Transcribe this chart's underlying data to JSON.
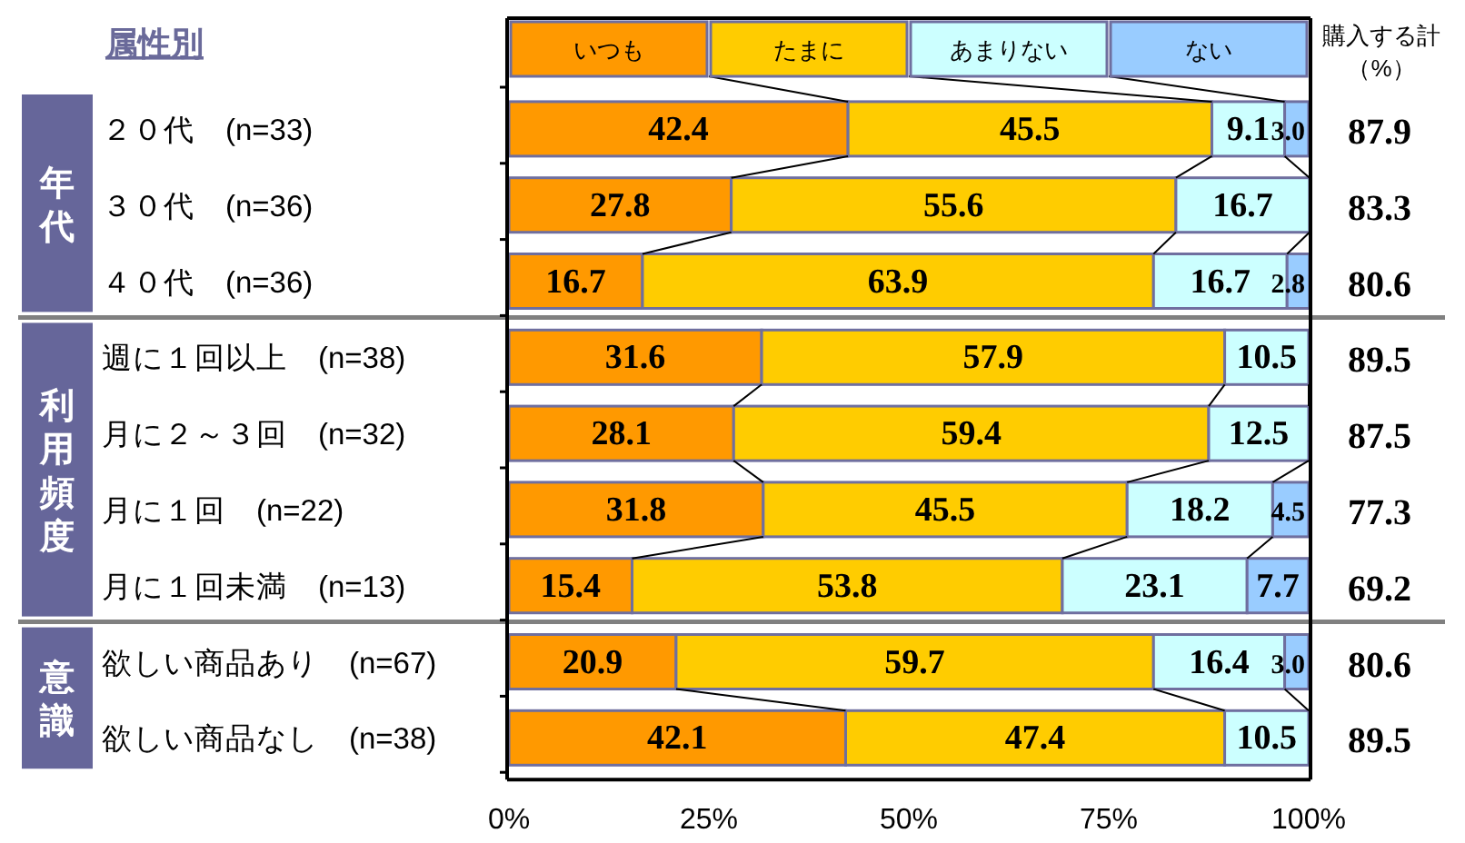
{
  "chart_data": {
    "type": "bar",
    "orientation": "horizontal",
    "stacked": true,
    "ylabel": "属性別",
    "categories": [
      "２０代　(n=33)",
      "３０代　(n=36)",
      "４０代　(n=36)",
      "週に１回以上　(n=38)",
      "月に２～３回　(n=32)",
      "月に１回　(n=22)",
      "月に１回未満　(n=13)",
      "欲しい商品あり　(n=67)",
      "欲しい商品なし　(n=38)"
    ],
    "series": [
      {
        "name": "いつも",
        "color": "#ff9900",
        "values": [
          42.4,
          27.8,
          16.7,
          31.6,
          28.1,
          31.8,
          15.4,
          20.9,
          42.1
        ],
        "value_labels": [
          "42.4",
          "27.8",
          "16.7",
          "31.6",
          "28.1",
          "31.8",
          "15.4",
          "20.9",
          "42.1"
        ]
      },
      {
        "name": "たまに",
        "color": "#ffcc00",
        "values": [
          45.5,
          55.6,
          63.9,
          57.9,
          59.4,
          45.5,
          53.8,
          59.7,
          47.4
        ],
        "value_labels": [
          "45.5",
          "55.6",
          "63.9",
          "57.9",
          "59.4",
          "45.5",
          "53.8",
          "59.7",
          "47.4"
        ]
      },
      {
        "name": "あまりない",
        "color": "#ccffff",
        "values": [
          9.1,
          16.7,
          16.7,
          10.5,
          12.5,
          18.2,
          23.1,
          16.4,
          10.5
        ],
        "value_labels": [
          "9.1",
          "16.7",
          "16.7",
          "10.5",
          "12.5",
          "18.2",
          "23.1",
          "16.4",
          "10.5"
        ]
      },
      {
        "name": "ない",
        "color": "#99ccff",
        "values": [
          3.0,
          0,
          2.8,
          0,
          0,
          4.5,
          7.7,
          3.0,
          0
        ],
        "value_labels": [
          "3.0",
          null,
          "2.8",
          null,
          null,
          "4.5",
          "7.7",
          "3.0",
          null
        ]
      }
    ],
    "xlim": [
      0,
      100
    ],
    "xticks": [
      {
        "value": 0,
        "label": "0%"
      },
      {
        "value": 25,
        "label": "25%"
      },
      {
        "value": 50,
        "label": "50%"
      },
      {
        "value": 75,
        "label": "75%"
      },
      {
        "value": 100,
        "label": "100%"
      }
    ],
    "legend": "top",
    "annotations": [
      "購入する計（%）",
      "年代",
      "利用頻度",
      "意識",
      "87.9",
      "83.3",
      "80.6",
      "89.5",
      "87.5",
      "77.3",
      "69.2",
      "80.6",
      "89.5"
    ]
  }
}
